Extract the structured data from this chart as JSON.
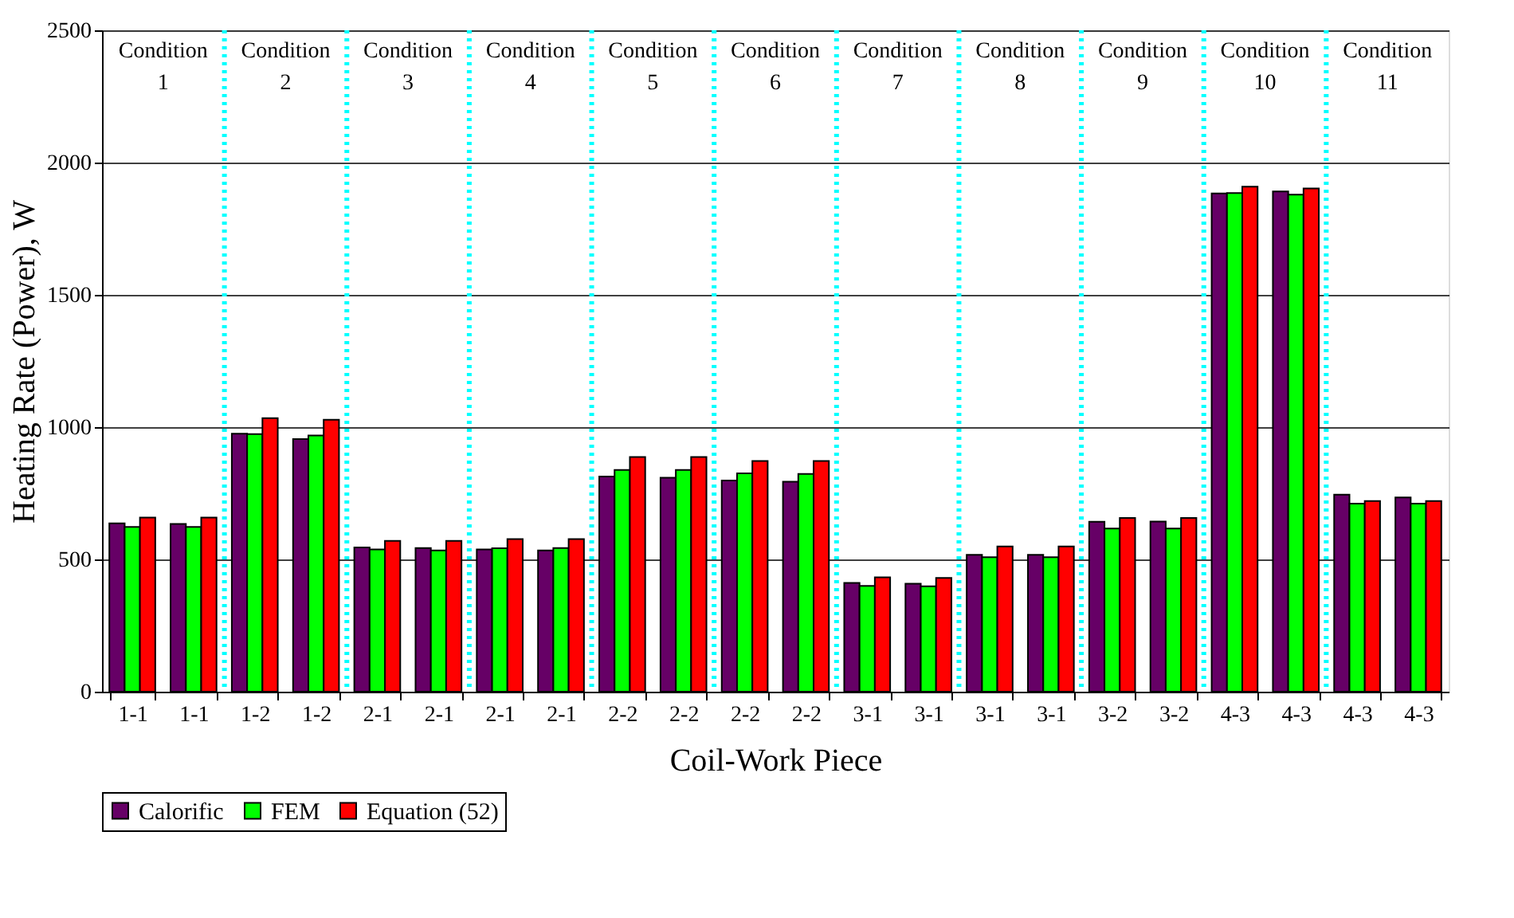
{
  "chart_data": {
    "type": "bar",
    "xlabel": "Coil-Work Piece",
    "ylabel": "Heating Rate (Power), W",
    "categories": [
      "1-1",
      "1-1",
      "1-2",
      "1-2",
      "2-1",
      "2-1",
      "2-1",
      "2-1",
      "2-2",
      "2-2",
      "2-2",
      "2-2",
      "3-1",
      "3-1",
      "3-1",
      "3-1",
      "3-2",
      "3-2",
      "4-3",
      "4-3",
      "4-3",
      "4-3"
    ],
    "series": [
      {
        "name": "Calorific",
        "color": "#660066",
        "values": [
          636,
          634,
          975,
          955,
          545,
          543,
          538,
          534,
          813,
          809,
          798,
          794,
          411,
          408,
          517,
          517,
          642,
          643,
          1883,
          1891,
          745,
          734
        ]
      },
      {
        "name": "FEM",
        "color": "#00ff00",
        "values": [
          623,
          623,
          974,
          968,
          538,
          534,
          542,
          543,
          838,
          838,
          825,
          823,
          400,
          398,
          508,
          508,
          617,
          617,
          1885,
          1879,
          711,
          711
        ]
      },
      {
        "name": "Equation (52)",
        "color": "#ff0000",
        "values": [
          658,
          658,
          1034,
          1028,
          570,
          570,
          577,
          577,
          887,
          887,
          872,
          872,
          432,
          430,
          549,
          549,
          657,
          657,
          1909,
          1902,
          721,
          721
        ]
      }
    ],
    "ylim": [
      0,
      2500
    ],
    "yticks": [
      0,
      500,
      1000,
      1500,
      2000,
      2500
    ],
    "grid": "y",
    "legend": "bottom",
    "annotations": [
      "Condition 1",
      "Condition 2",
      "Condition 3",
      "Condition 4",
      "Condition 5",
      "Condition 6",
      "Condition 7",
      "Condition 8",
      "Condition 9",
      "Condition 10",
      "Condition 11"
    ]
  }
}
